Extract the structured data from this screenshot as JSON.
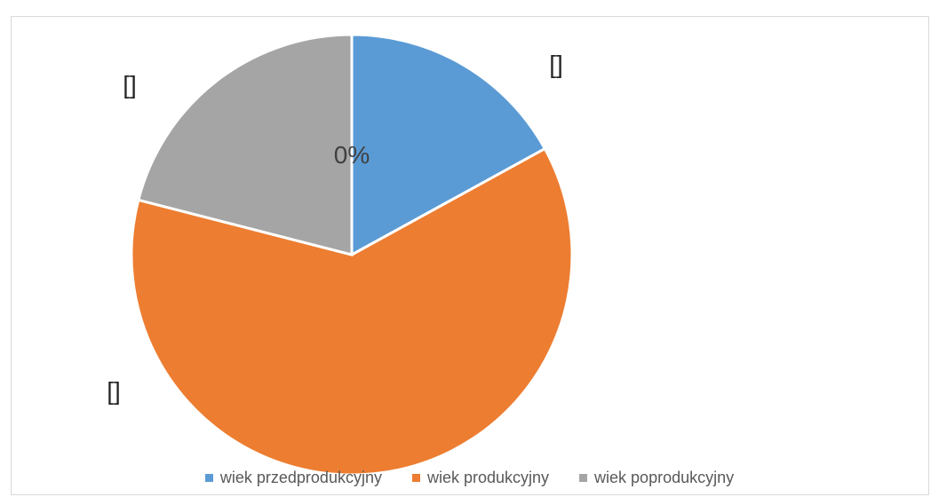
{
  "chart_data": {
    "type": "pie",
    "title": "",
    "categories": [
      "wiek przedprodukcyjny",
      "wiek produkcyjny",
      "wiek poprodukcyjny"
    ],
    "values": [
      17,
      62,
      21
    ],
    "colors": [
      "#5b9bd5",
      "#ed7d31",
      "#a5a5a5"
    ],
    "data_labels": [
      "[]",
      "[]",
      "[]"
    ],
    "center_label": "0%",
    "legend": {
      "position": "bottom",
      "entries": [
        "wiek przedprodukcyjny",
        "wiek produkcyjny",
        "wiek poprodukcyjny"
      ]
    }
  }
}
